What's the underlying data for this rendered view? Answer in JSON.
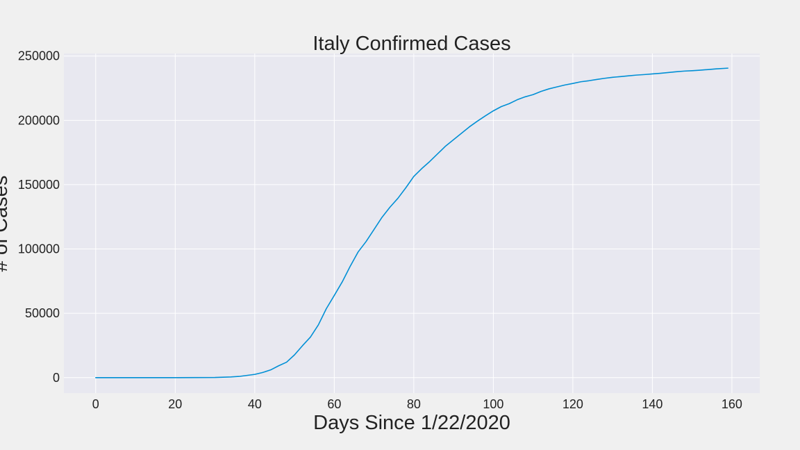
{
  "chart_data": {
    "type": "line",
    "title": "Italy Confirmed Cases",
    "xlabel": "Days Since 1/22/2020",
    "ylabel": "# of Cases",
    "xlim": [
      -8,
      167
    ],
    "ylim": [
      -12000,
      252000
    ],
    "x_ticks": [
      0,
      20,
      40,
      60,
      80,
      100,
      120,
      140,
      160
    ],
    "y_ticks": [
      0,
      50000,
      100000,
      150000,
      200000,
      250000
    ],
    "grid": true,
    "colors": {
      "figure_background": "#f0f0f0",
      "plot_background": "#e8e8f0",
      "grid": "#ffffff",
      "line": "#008fd5",
      "text": "#222222"
    },
    "series": [
      {
        "x": [
          0,
          10,
          20,
          30,
          34,
          36,
          38,
          40,
          42,
          44,
          46,
          48,
          50,
          52,
          54,
          56,
          58,
          60,
          62,
          64,
          66,
          68,
          70,
          72,
          74,
          76,
          78,
          80,
          82,
          84,
          86,
          88,
          90,
          92,
          94,
          96,
          98,
          100,
          102,
          104,
          106,
          108,
          110,
          112,
          114,
          116,
          118,
          120,
          122,
          124,
          126,
          128,
          130,
          132,
          134,
          136,
          138,
          140,
          142,
          144,
          146,
          148,
          150,
          152,
          154,
          156,
          159
        ],
        "y": [
          0,
          0,
          0,
          100,
          500,
          900,
          1700,
          2500,
          4000,
          6000,
          9200,
          12000,
          17700,
          24800,
          31500,
          41000,
          53600,
          63900,
          74400,
          86500,
          97700,
          105800,
          115200,
          124600,
          132500,
          139400,
          147600,
          156400,
          162500,
          168000,
          174000,
          180000,
          185000,
          190000,
          195000,
          199400,
          203500,
          207400,
          210700,
          213000,
          216000,
          218300,
          220000,
          222500,
          224500,
          226000,
          227500,
          228700,
          230000,
          230800,
          231800,
          232700,
          233500,
          234000,
          234600,
          235200,
          235600,
          236100,
          236600,
          237200,
          237800,
          238300,
          238600,
          239000,
          239500,
          240000,
          240600
        ]
      }
    ]
  }
}
